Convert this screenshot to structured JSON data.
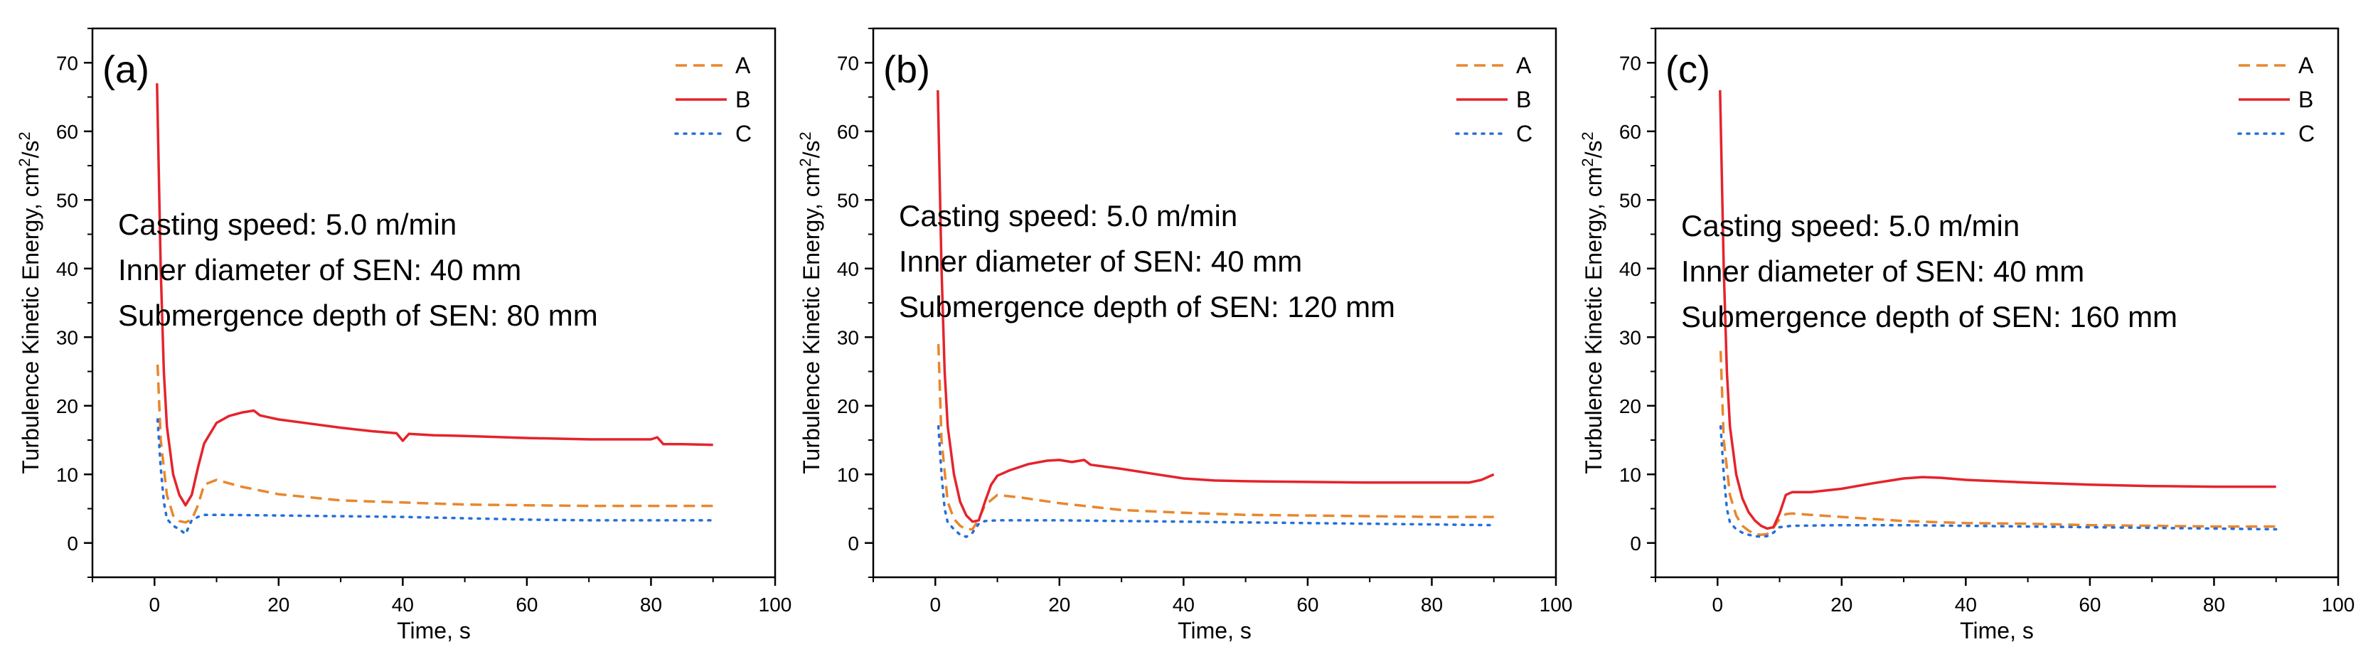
{
  "colors": {
    "A": "#e8872e",
    "B": "#e5232c",
    "C": "#2470d8",
    "axis": "#000000",
    "background": "#ffffff"
  },
  "chart_data": [
    {
      "type": "line",
      "panel_label": "(a)",
      "xlabel": "Time, s",
      "ylabel": {
        "base": "Turbulence Kinetic Energy, cm",
        "sup1": "2",
        "mid": "/s",
        "sup2": "2"
      },
      "xlim": [
        -10,
        100
      ],
      "ylim": [
        -5,
        75
      ],
      "x_ticks": [
        0,
        20,
        40,
        60,
        80,
        100
      ],
      "y_ticks": [
        0,
        10,
        20,
        30,
        40,
        50,
        60,
        70
      ],
      "legend_position": "top-right",
      "annotation": [
        "Casting speed: 5.0 m/min",
        "Inner diameter of SEN: 40 mm",
        "Submergence depth of SEN: 80 mm"
      ],
      "series": [
        {
          "name": "A",
          "style": "dashed",
          "x": [
            0.5,
            1,
            2,
            3,
            4,
            5,
            6,
            7,
            8,
            10,
            14,
            20,
            30,
            40,
            50,
            60,
            70,
            80,
            90
          ],
          "y": [
            26,
            15,
            7,
            4,
            3.2,
            3,
            3.4,
            5.5,
            8.5,
            9.2,
            8.2,
            7.1,
            6.2,
            5.9,
            5.6,
            5.5,
            5.4,
            5.4,
            5.4
          ]
        },
        {
          "name": "B",
          "style": "solid",
          "x": [
            0.4,
            1,
            1.5,
            2,
            3,
            4,
            5,
            6,
            7,
            8,
            10,
            12,
            14,
            16,
            17,
            20,
            25,
            30,
            35,
            39,
            40,
            41,
            45,
            50,
            60,
            70,
            80,
            81,
            82,
            85,
            90
          ],
          "y": [
            67,
            40,
            25,
            17,
            10,
            7,
            5.5,
            7,
            11,
            14.5,
            17.5,
            18.5,
            19,
            19.3,
            18.6,
            18,
            17.4,
            16.8,
            16.3,
            16,
            14.9,
            15.9,
            15.7,
            15.6,
            15.3,
            15.1,
            15.1,
            15.4,
            14.4,
            14.4,
            14.3
          ]
        },
        {
          "name": "C",
          "style": "dotted",
          "x": [
            0.5,
            1,
            1.5,
            2,
            3,
            4,
            5,
            6,
            7,
            8,
            10,
            20,
            30,
            40,
            50,
            60,
            70,
            80,
            90
          ],
          "y": [
            18,
            11,
            6,
            3.5,
            2.5,
            2,
            1.3,
            3.3,
            3.8,
            4.1,
            4.1,
            4,
            3.9,
            3.8,
            3.6,
            3.4,
            3.3,
            3.3,
            3.3
          ]
        }
      ]
    },
    {
      "type": "line",
      "panel_label": "(b)",
      "xlabel": "Time, s",
      "ylabel": {
        "base": "Turbulence Kinetic Energy, cm",
        "sup1": "2",
        "mid": "/s",
        "sup2": "2"
      },
      "xlim": [
        -10,
        100
      ],
      "ylim": [
        -5,
        75
      ],
      "x_ticks": [
        0,
        20,
        40,
        60,
        80,
        100
      ],
      "y_ticks": [
        0,
        10,
        20,
        30,
        40,
        50,
        60,
        70
      ],
      "legend_position": "top-right",
      "annotation": [
        "Casting speed: 5.0 m/min",
        "Inner diameter of SEN: 40 mm",
        "Submergence depth of SEN: 120 mm"
      ],
      "series": [
        {
          "name": "A",
          "style": "dashed",
          "x": [
            0.5,
            1,
            2,
            3,
            4,
            5,
            6,
            7,
            8,
            10,
            14,
            20,
            30,
            40,
            50,
            60,
            70,
            80,
            90
          ],
          "y": [
            29,
            15,
            6,
            3.5,
            2.5,
            2,
            2,
            3.5,
            5.5,
            7,
            6.6,
            5.8,
            4.8,
            4.4,
            4.1,
            4,
            3.9,
            3.8,
            3.8
          ]
        },
        {
          "name": "B",
          "style": "solid",
          "x": [
            0.4,
            1,
            1.5,
            2,
            3,
            4,
            5,
            6,
            7,
            8,
            9,
            10,
            12,
            15,
            18,
            20,
            22,
            24,
            25,
            30,
            35,
            40,
            45,
            50,
            60,
            70,
            80,
            86,
            88,
            90
          ],
          "y": [
            66,
            40,
            25,
            17,
            10,
            6,
            4,
            3.1,
            3.3,
            6,
            8.5,
            9.8,
            10.6,
            11.5,
            12,
            12.1,
            11.8,
            12.1,
            11.4,
            10.8,
            10.1,
            9.4,
            9.1,
            9,
            8.9,
            8.8,
            8.8,
            8.8,
            9.2,
            10
          ]
        },
        {
          "name": "C",
          "style": "dotted",
          "x": [
            0.5,
            1,
            1.5,
            2,
            3,
            4,
            5,
            6,
            7,
            8,
            10,
            20,
            30,
            40,
            50,
            60,
            70,
            80,
            90
          ],
          "y": [
            17,
            10,
            5,
            3,
            2,
            1.2,
            0.9,
            1.5,
            2.8,
            3.2,
            3.3,
            3.3,
            3.2,
            3.1,
            3,
            2.9,
            2.8,
            2.7,
            2.6
          ]
        }
      ]
    },
    {
      "type": "line",
      "panel_label": "(c)",
      "xlabel": "Time, s",
      "ylabel": {
        "base": "Turbulence Kinetic Energy, cm",
        "sup1": "2",
        "mid": "/s",
        "sup2": "2"
      },
      "xlim": [
        -10,
        100
      ],
      "ylim": [
        -5,
        75
      ],
      "x_ticks": [
        0,
        20,
        40,
        60,
        80,
        100
      ],
      "y_ticks": [
        0,
        10,
        20,
        30,
        40,
        50,
        60,
        70
      ],
      "legend_position": "top-right",
      "annotation": [
        "Casting speed: 5.0 m/min",
        "Inner diameter of SEN: 40 mm",
        "Submergence depth of SEN: 160 mm"
      ],
      "series": [
        {
          "name": "A",
          "style": "dashed",
          "x": [
            0.5,
            1,
            2,
            3,
            4,
            5,
            6,
            7,
            8,
            9,
            10,
            11,
            12,
            15,
            20,
            30,
            40,
            50,
            60,
            70,
            80,
            90
          ],
          "y": [
            28,
            15,
            7,
            4,
            2.5,
            1.8,
            1.3,
            1.2,
            1.3,
            2.2,
            3.5,
            4.2,
            4.3,
            4.1,
            3.8,
            3.2,
            2.9,
            2.8,
            2.6,
            2.5,
            2.4,
            2.4
          ]
        },
        {
          "name": "B",
          "style": "solid",
          "x": [
            0.4,
            1,
            1.5,
            2,
            3,
            4,
            5,
            6,
            7,
            8,
            9,
            10,
            11,
            12,
            15,
            20,
            25,
            30,
            33,
            36,
            40,
            50,
            60,
            70,
            80,
            90
          ],
          "y": [
            66,
            40,
            25,
            17,
            10,
            6.5,
            4.5,
            3.3,
            2.5,
            2.1,
            2.3,
            4.3,
            7,
            7.4,
            7.4,
            7.9,
            8.7,
            9.4,
            9.6,
            9.5,
            9.2,
            8.8,
            8.5,
            8.3,
            8.2,
            8.2
          ]
        },
        {
          "name": "C",
          "style": "dotted",
          "x": [
            0.5,
            1,
            1.5,
            2,
            3,
            4,
            5,
            6,
            7,
            8,
            9,
            10,
            12,
            20,
            30,
            40,
            50,
            60,
            70,
            80,
            90
          ],
          "y": [
            17,
            10,
            5,
            3,
            2,
            1.5,
            1.2,
            1,
            0.9,
            1,
            1.5,
            2.3,
            2.5,
            2.6,
            2.6,
            2.5,
            2.4,
            2.3,
            2.2,
            2.1,
            2.0
          ]
        }
      ]
    }
  ]
}
